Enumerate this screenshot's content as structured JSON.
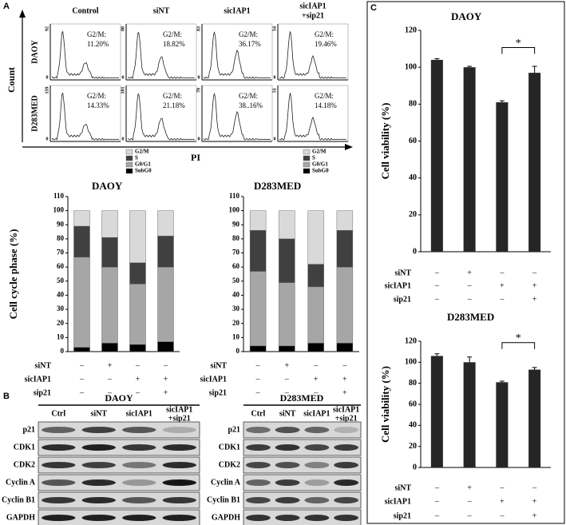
{
  "panel_labels": [
    "A",
    "B",
    "C"
  ],
  "flow": {
    "y_label": "Count",
    "x_label": "PI",
    "g2m_label": "G2/M:",
    "columns": [
      [
        "Control"
      ],
      [
        "siNT"
      ],
      [
        "sicIAP1"
      ],
      [
        "sicIAP1",
        "+sip21"
      ]
    ],
    "rows": [
      {
        "label": "DAOY",
        "ymax": [
          "92",
          "80",
          "83",
          "54"
        ],
        "zero": "0",
        "g2m": [
          "11.20%",
          "18.82%",
          "36.17%",
          "19.46%"
        ]
      },
      {
        "label": "D283MED",
        "ymax": [
          "159",
          "101",
          "79",
          "51"
        ],
        "zero": "0",
        "g2m": [
          "14.33%",
          "21.18%",
          "38..16%",
          "14.18%"
        ]
      }
    ]
  },
  "chart_data": [
    {
      "type": "stacked_bar",
      "title": "DAOY",
      "ylabel": "Cell cycle phase (%)",
      "ylim": [
        0,
        110
      ],
      "yticks": [
        0,
        10,
        20,
        30,
        40,
        50,
        60,
        70,
        80,
        90,
        100,
        110
      ],
      "series": [
        {
          "name": "SubG0",
          "color": "#000000",
          "values": [
            3,
            6,
            5,
            7
          ]
        },
        {
          "name": "G0/G1",
          "color": "#a6a6a6",
          "values": [
            64,
            54,
            43,
            53
          ]
        },
        {
          "name": "S",
          "color": "#404040",
          "values": [
            22,
            21,
            15,
            22
          ]
        },
        {
          "name": "G2/M",
          "color": "#d9d9d9",
          "values": [
            11,
            19,
            37,
            18
          ]
        }
      ],
      "conditions": {
        "rows": [
          "siNT",
          "sicIAP1",
          "sip21"
        ],
        "signs": [
          [
            "–",
            "+",
            "–",
            "–"
          ],
          [
            "–",
            "–",
            "+",
            "+"
          ],
          [
            "–",
            "–",
            "–",
            "+"
          ]
        ]
      }
    },
    {
      "type": "stacked_bar",
      "title": "D283MED",
      "ylim": [
        0,
        110
      ],
      "yticks": [
        0,
        10,
        20,
        30,
        40,
        50,
        60,
        70,
        80,
        90,
        100,
        110
      ],
      "series": [
        {
          "name": "SubG0",
          "color": "#000000",
          "values": [
            4,
            4,
            6,
            6
          ]
        },
        {
          "name": "G0/G1",
          "color": "#a6a6a6",
          "values": [
            53,
            45,
            40,
            54
          ]
        },
        {
          "name": "S",
          "color": "#404040",
          "values": [
            29,
            31,
            16,
            26
          ]
        },
        {
          "name": "G2/M",
          "color": "#d9d9d9",
          "values": [
            14,
            20,
            38,
            14
          ]
        }
      ],
      "conditions": {
        "rows": [
          "siNT",
          "sicIAP1",
          "sip21"
        ],
        "signs": [
          [
            "–",
            "+",
            "–",
            "–"
          ],
          [
            "–",
            "–",
            "+",
            "+"
          ],
          [
            "–",
            "–",
            "–",
            "+"
          ]
        ]
      }
    },
    {
      "type": "bar",
      "title": "DAOY",
      "ylabel": "Cell viability (%)",
      "ylim": [
        0,
        120
      ],
      "yticks": [
        0,
        20,
        40,
        60,
        80,
        100,
        120
      ],
      "color": "#262626",
      "values": [
        104,
        100,
        81,
        97
      ],
      "errors": [
        0.6,
        0.5,
        0.8,
        3.5
      ],
      "annotation": "*",
      "conditions": {
        "rows": [
          "siNT",
          "sicIAP1",
          "sip21"
        ],
        "signs": [
          [
            "–",
            "+",
            "–",
            "–"
          ],
          [
            "–",
            "–",
            "+",
            "+"
          ],
          [
            "–",
            "–",
            "–",
            "+"
          ]
        ]
      }
    },
    {
      "type": "bar",
      "title": "D283MED",
      "ylabel": "Cell viability (%)",
      "ylim": [
        0,
        120
      ],
      "yticks": [
        0,
        20,
        40,
        60,
        80,
        100,
        120
      ],
      "color": "#262626",
      "values": [
        106,
        100,
        81,
        93
      ],
      "errors": [
        2,
        5,
        1,
        2
      ],
      "annotation": "*",
      "conditions": {
        "rows": [
          "siNT",
          "sicIAP1",
          "sip21"
        ],
        "signs": [
          [
            "–",
            "+",
            "–",
            "–"
          ],
          [
            "–",
            "–",
            "+",
            "+"
          ],
          [
            "–",
            "–",
            "–",
            "+"
          ]
        ]
      }
    }
  ],
  "blots": [
    {
      "title": "DAOY",
      "columns": [
        [
          "Ctrl"
        ],
        [
          "siNT"
        ],
        [
          "sicIAP1"
        ],
        [
          "sicIAP1",
          "+sip21"
        ]
      ],
      "rows": [
        "p21",
        "CDK1",
        "CDK2",
        "Cyclin A",
        "Cyclin B1",
        "GAPDH"
      ]
    },
    {
      "title": "D283MED",
      "columns": [
        [
          "Ctrl"
        ],
        [
          "siNT"
        ],
        [
          "sicIAP1"
        ],
        [
          "sicIAP1",
          "+sip21"
        ]
      ],
      "rows": [
        "p21",
        "CDK1",
        "CDK2",
        "Cyclin A",
        "Cyclin B1",
        "GAPDH"
      ]
    }
  ]
}
